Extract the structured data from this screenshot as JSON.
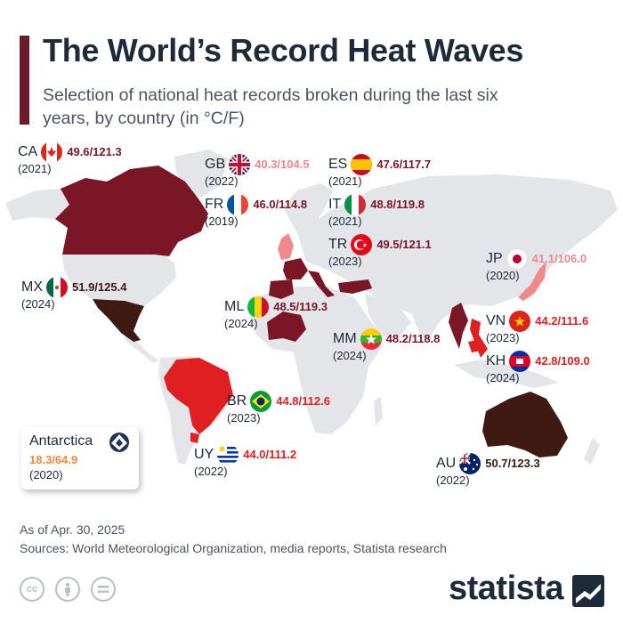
{
  "title": "The World’s Record Heat Waves",
  "subtitle": "Selection of national heat records broken during the last six years, by country (in °C/F)",
  "colors": {
    "accent": "#6b1b2b",
    "land": "#e3e5e9",
    "dark_red": "#7a1626",
    "brown": "#3e1a12",
    "red": "#e02020",
    "pink": "#f08a8a",
    "orange": "#f08a3c"
  },
  "records": [
    {
      "code": "CA",
      "flag": "canada-flag",
      "value": "49.6/121.3",
      "year": "(2021)",
      "color": "#7a1626"
    },
    {
      "code": "GB",
      "flag": "uk-flag",
      "value": "40.3/104.5",
      "year": "(2022)",
      "color": "#f08a8a"
    },
    {
      "code": "FR",
      "flag": "france-flag",
      "value": "46.0/114.8",
      "year": "(2019)",
      "color": "#7a1626"
    },
    {
      "code": "ES",
      "flag": "spain-flag",
      "value": "47.6/117.7",
      "year": "(2021)",
      "color": "#7a1626"
    },
    {
      "code": "IT",
      "flag": "italy-flag",
      "value": "48.8/119.8",
      "year": "(2021)",
      "color": "#7a1626"
    },
    {
      "code": "TR",
      "flag": "turkey-flag",
      "value": "49.5/121.1",
      "year": "(2023)",
      "color": "#7a1626"
    },
    {
      "code": "JP",
      "flag": "japan-flag",
      "value": "41.1/106.0",
      "year": "(2020)",
      "color": "#f08a8a"
    },
    {
      "code": "MX",
      "flag": "mexico-flag",
      "value": "51.9/125.4",
      "year": "(2024)",
      "color": "#3e1a12"
    },
    {
      "code": "ML",
      "flag": "mali-flag",
      "value": "48.5/119.3",
      "year": "(2024)",
      "color": "#7a1626"
    },
    {
      "code": "MM",
      "flag": "myanmar-flag",
      "value": "48.2/118.8",
      "year": "(2024)",
      "color": "#7a1626"
    },
    {
      "code": "VN",
      "flag": "vietnam-flag",
      "value": "44.2/111.6",
      "year": "(2023)",
      "color": "#e02020"
    },
    {
      "code": "KH",
      "flag": "cambodia-flag",
      "value": "42.8/109.0",
      "year": "(2024)",
      "color": "#e02020"
    },
    {
      "code": "BR",
      "flag": "brazil-flag",
      "value": "44.8/112.6",
      "year": "(2023)",
      "color": "#e02020"
    },
    {
      "code": "UY",
      "flag": "uruguay-flag",
      "value": "44.0/111.2",
      "year": "(2022)",
      "color": "#e02020"
    },
    {
      "code": "AU",
      "flag": "australia-flag",
      "value": "50.7/123.3",
      "year": "(2022)",
      "color": "#3e1a12"
    }
  ],
  "antarctica": {
    "name": "Antarctica",
    "value": "18.3/64.9",
    "year": "(2020)",
    "icon": "antarctica-emblem-icon",
    "color": "#f08a3c"
  },
  "footer": {
    "date": "As of Apr. 30, 2025",
    "sources": "Sources: World Meteorological Organization, media reports, Statista research",
    "license_icons": [
      "cc-icon",
      "attribution-icon",
      "no-derivatives-icon"
    ]
  },
  "brand": {
    "name": "statista",
    "logo_icon": "statista-logo-icon"
  }
}
